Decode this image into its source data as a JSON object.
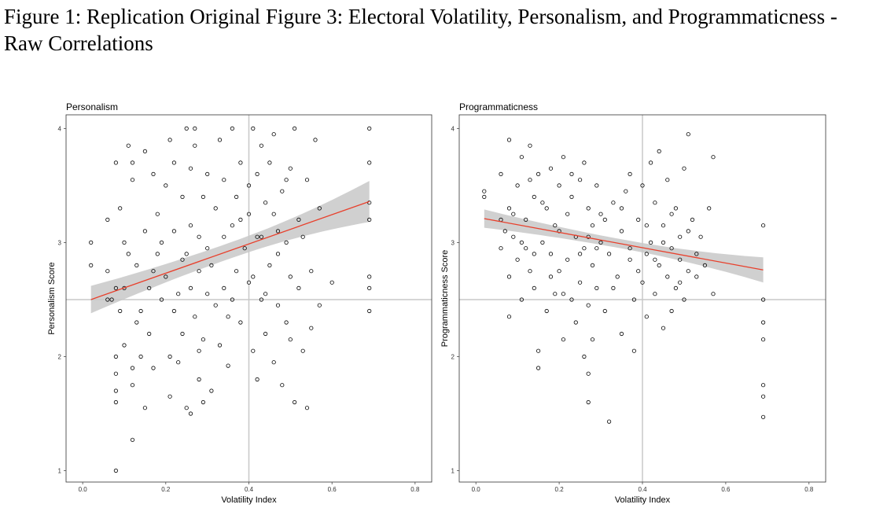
{
  "figure": {
    "caption": "Figure 1: Replication Original Figure 3: Electoral Volatility, Personalism, and Programmaticness - Raw Correlations"
  },
  "colors": {
    "fit_line": "#e8402c",
    "confidence_band": "#c8c8c8",
    "reference_line": "#c8c8c8",
    "points": "#000000",
    "panel_border": "#333333"
  },
  "chart_data": [
    {
      "type": "scatter",
      "title": "Personalism",
      "xlabel": "Volatility Index",
      "ylabel": "Personalism Score",
      "xlim": [
        -0.04,
        0.84
      ],
      "ylim": [
        0.9,
        4.12
      ],
      "xticks": [
        0.0,
        0.2,
        0.4,
        0.6,
        0.8
      ],
      "yticks": [
        1,
        2,
        3,
        4
      ],
      "reference_lines": {
        "x": 0.4,
        "y": 2.5
      },
      "fit": {
        "x": [
          0.02,
          0.69
        ],
        "y": [
          2.5,
          3.36
        ],
        "ci_halfwidth": [
          0.12,
          0.07,
          0.18
        ]
      },
      "grid": false,
      "points": [
        [
          0.02,
          3.0
        ],
        [
          0.02,
          2.8
        ],
        [
          0.06,
          3.2
        ],
        [
          0.06,
          2.75
        ],
        [
          0.06,
          2.5
        ],
        [
          0.07,
          2.5
        ],
        [
          0.08,
          2.6
        ],
        [
          0.08,
          2.0
        ],
        [
          0.08,
          1.7
        ],
        [
          0.08,
          1.85
        ],
        [
          0.08,
          1.6
        ],
        [
          0.09,
          2.4
        ],
        [
          0.1,
          2.6
        ],
        [
          0.1,
          2.1
        ],
        [
          0.12,
          1.9
        ],
        [
          0.12,
          1.75
        ],
        [
          0.12,
          1.27
        ],
        [
          0.08,
          1.0
        ],
        [
          0.08,
          3.7
        ],
        [
          0.09,
          3.3
        ],
        [
          0.1,
          3.0
        ],
        [
          0.11,
          2.9
        ],
        [
          0.11,
          3.85
        ],
        [
          0.12,
          3.55
        ],
        [
          0.12,
          3.7
        ],
        [
          0.13,
          2.8
        ],
        [
          0.14,
          2.4
        ],
        [
          0.14,
          2.0
        ],
        [
          0.15,
          3.1
        ],
        [
          0.15,
          3.8
        ],
        [
          0.16,
          2.6
        ],
        [
          0.16,
          2.2
        ],
        [
          0.17,
          1.9
        ],
        [
          0.17,
          3.6
        ],
        [
          0.18,
          2.9
        ],
        [
          0.18,
          3.25
        ],
        [
          0.19,
          2.5
        ],
        [
          0.2,
          3.5
        ],
        [
          0.2,
          2.7
        ],
        [
          0.21,
          1.65
        ],
        [
          0.21,
          3.9
        ],
        [
          0.21,
          2.0
        ],
        [
          0.22,
          2.4
        ],
        [
          0.22,
          3.1
        ],
        [
          0.22,
          3.7
        ],
        [
          0.23,
          2.55
        ],
        [
          0.24,
          2.2
        ],
        [
          0.24,
          3.4
        ],
        [
          0.25,
          1.55
        ],
        [
          0.25,
          4.0
        ],
        [
          0.25,
          2.9
        ],
        [
          0.26,
          3.15
        ],
        [
          0.26,
          2.6
        ],
        [
          0.26,
          1.5
        ],
        [
          0.27,
          3.85
        ],
        [
          0.27,
          2.35
        ],
        [
          0.27,
          4.0
        ],
        [
          0.28,
          3.05
        ],
        [
          0.28,
          2.75
        ],
        [
          0.28,
          1.8
        ],
        [
          0.29,
          3.4
        ],
        [
          0.29,
          2.15
        ],
        [
          0.3,
          2.55
        ],
        [
          0.3,
          3.6
        ],
        [
          0.31,
          1.7
        ],
        [
          0.31,
          2.8
        ],
        [
          0.32,
          3.3
        ],
        [
          0.33,
          2.1
        ],
        [
          0.33,
          3.9
        ],
        [
          0.34,
          2.6
        ],
        [
          0.34,
          3.55
        ],
        [
          0.35,
          2.35
        ],
        [
          0.35,
          1.92
        ],
        [
          0.36,
          3.15
        ],
        [
          0.36,
          4.0
        ],
        [
          0.37,
          2.75
        ],
        [
          0.37,
          3.4
        ],
        [
          0.38,
          2.3
        ],
        [
          0.38,
          3.7
        ],
        [
          0.39,
          2.95
        ],
        [
          0.4,
          3.25
        ],
        [
          0.4,
          2.65
        ],
        [
          0.41,
          4.0
        ],
        [
          0.41,
          2.05
        ],
        [
          0.42,
          3.6
        ],
        [
          0.42,
          3.05
        ],
        [
          0.42,
          1.8
        ],
        [
          0.43,
          2.5
        ],
        [
          0.43,
          3.85
        ],
        [
          0.44,
          3.35
        ],
        [
          0.44,
          2.2
        ],
        [
          0.45,
          2.8
        ],
        [
          0.45,
          3.7
        ],
        [
          0.46,
          3.95
        ],
        [
          0.46,
          1.95
        ],
        [
          0.47,
          3.1
        ],
        [
          0.47,
          2.45
        ],
        [
          0.48,
          3.45
        ],
        [
          0.48,
          1.75
        ],
        [
          0.49,
          3.0
        ],
        [
          0.49,
          2.3
        ],
        [
          0.5,
          3.65
        ],
        [
          0.5,
          2.7
        ],
        [
          0.51,
          1.6
        ],
        [
          0.51,
          4.0
        ],
        [
          0.52,
          3.2
        ],
        [
          0.52,
          2.6
        ],
        [
          0.53,
          2.05
        ],
        [
          0.54,
          3.55
        ],
        [
          0.54,
          1.55
        ],
        [
          0.55,
          2.25
        ],
        [
          0.56,
          3.9
        ],
        [
          0.57,
          3.3
        ],
        [
          0.57,
          2.45
        ],
        [
          0.6,
          2.65
        ],
        [
          0.69,
          4.0
        ],
        [
          0.69,
          3.7
        ],
        [
          0.69,
          3.35
        ],
        [
          0.69,
          3.2
        ],
        [
          0.69,
          2.7
        ],
        [
          0.69,
          2.6
        ],
        [
          0.69,
          2.4
        ],
        [
          0.13,
          2.3
        ],
        [
          0.15,
          1.55
        ],
        [
          0.17,
          2.75
        ],
        [
          0.19,
          3.0
        ],
        [
          0.23,
          1.95
        ],
        [
          0.24,
          2.85
        ],
        [
          0.26,
          3.65
        ],
        [
          0.28,
          2.05
        ],
        [
          0.29,
          1.6
        ],
        [
          0.3,
          2.95
        ],
        [
          0.32,
          2.45
        ],
        [
          0.34,
          3.05
        ],
        [
          0.36,
          2.5
        ],
        [
          0.38,
          3.2
        ],
        [
          0.4,
          3.5
        ],
        [
          0.41,
          2.7
        ],
        [
          0.43,
          3.05
        ],
        [
          0.44,
          2.55
        ],
        [
          0.46,
          3.25
        ],
        [
          0.47,
          2.9
        ],
        [
          0.49,
          3.55
        ],
        [
          0.5,
          2.15
        ],
        [
          0.53,
          3.05
        ],
        [
          0.55,
          2.75
        ]
      ]
    },
    {
      "type": "scatter",
      "title": "Programmaticness",
      "xlabel": "Volatility Index",
      "ylabel": "Programmaticness Score",
      "xlim": [
        -0.04,
        0.84
      ],
      "ylim": [
        0.9,
        4.12
      ],
      "xticks": [
        0.0,
        0.2,
        0.4,
        0.6,
        0.8
      ],
      "yticks": [
        1,
        2,
        3,
        4
      ],
      "reference_lines": {
        "x": 0.4,
        "y": 2.5
      },
      "fit": {
        "x": [
          0.02,
          0.69
        ],
        "y": [
          3.21,
          2.76
        ],
        "ci_halfwidth": [
          0.08,
          0.04,
          0.11
        ]
      },
      "grid": false,
      "points": [
        [
          0.02,
          3.45
        ],
        [
          0.02,
          3.4
        ],
        [
          0.06,
          3.6
        ],
        [
          0.06,
          3.2
        ],
        [
          0.06,
          2.95
        ],
        [
          0.07,
          3.1
        ],
        [
          0.08,
          3.9
        ],
        [
          0.08,
          3.3
        ],
        [
          0.08,
          2.7
        ],
        [
          0.08,
          2.35
        ],
        [
          0.09,
          3.05
        ],
        [
          0.1,
          3.5
        ],
        [
          0.1,
          2.85
        ],
        [
          0.11,
          3.75
        ],
        [
          0.11,
          2.5
        ],
        [
          0.12,
          3.2
        ],
        [
          0.12,
          2.95
        ],
        [
          0.13,
          3.85
        ],
        [
          0.13,
          2.75
        ],
        [
          0.14,
          3.4
        ],
        [
          0.14,
          2.6
        ],
        [
          0.15,
          2.05
        ],
        [
          0.15,
          1.9
        ],
        [
          0.15,
          3.6
        ],
        [
          0.16,
          3.0
        ],
        [
          0.17,
          3.3
        ],
        [
          0.17,
          2.4
        ],
        [
          0.18,
          3.65
        ],
        [
          0.18,
          2.9
        ],
        [
          0.19,
          3.15
        ],
        [
          0.19,
          2.55
        ],
        [
          0.2,
          3.5
        ],
        [
          0.2,
          2.75
        ],
        [
          0.21,
          2.15
        ],
        [
          0.21,
          3.75
        ],
        [
          0.22,
          3.25
        ],
        [
          0.22,
          2.85
        ],
        [
          0.23,
          3.4
        ],
        [
          0.23,
          2.5
        ],
        [
          0.24,
          3.05
        ],
        [
          0.24,
          2.3
        ],
        [
          0.25,
          3.55
        ],
        [
          0.25,
          2.65
        ],
        [
          0.26,
          3.7
        ],
        [
          0.26,
          2.95
        ],
        [
          0.26,
          2.0
        ],
        [
          0.27,
          3.3
        ],
        [
          0.27,
          2.45
        ],
        [
          0.27,
          1.85
        ],
        [
          0.27,
          1.6
        ],
        [
          0.28,
          3.15
        ],
        [
          0.28,
          2.8
        ],
        [
          0.28,
          2.15
        ],
        [
          0.29,
          3.5
        ],
        [
          0.29,
          2.6
        ],
        [
          0.3,
          3.0
        ],
        [
          0.3,
          3.25
        ],
        [
          0.31,
          2.4
        ],
        [
          0.32,
          1.43
        ],
        [
          0.32,
          2.9
        ],
        [
          0.33,
          3.35
        ],
        [
          0.34,
          2.7
        ],
        [
          0.35,
          3.1
        ],
        [
          0.35,
          2.2
        ],
        [
          0.36,
          3.45
        ],
        [
          0.37,
          2.85
        ],
        [
          0.37,
          3.6
        ],
        [
          0.38,
          2.5
        ],
        [
          0.38,
          2.05
        ],
        [
          0.39,
          3.2
        ],
        [
          0.4,
          2.65
        ],
        [
          0.4,
          3.5
        ],
        [
          0.41,
          2.9
        ],
        [
          0.41,
          2.35
        ],
        [
          0.42,
          3.7
        ],
        [
          0.42,
          3.0
        ],
        [
          0.43,
          2.55
        ],
        [
          0.43,
          3.35
        ],
        [
          0.44,
          2.8
        ],
        [
          0.44,
          3.8
        ],
        [
          0.45,
          2.25
        ],
        [
          0.45,
          3.15
        ],
        [
          0.46,
          2.7
        ],
        [
          0.46,
          3.55
        ],
        [
          0.47,
          2.95
        ],
        [
          0.47,
          2.4
        ],
        [
          0.48,
          3.3
        ],
        [
          0.48,
          2.6
        ],
        [
          0.49,
          3.05
        ],
        [
          0.49,
          2.85
        ],
        [
          0.5,
          3.65
        ],
        [
          0.5,
          2.5
        ],
        [
          0.51,
          3.95
        ],
        [
          0.51,
          2.75
        ],
        [
          0.52,
          3.2
        ],
        [
          0.53,
          2.9
        ],
        [
          0.54,
          3.05
        ],
        [
          0.55,
          2.8
        ],
        [
          0.56,
          3.3
        ],
        [
          0.57,
          3.75
        ],
        [
          0.57,
          2.55
        ],
        [
          0.69,
          3.15
        ],
        [
          0.69,
          2.5
        ],
        [
          0.69,
          2.3
        ],
        [
          0.69,
          2.15
        ],
        [
          0.69,
          1.75
        ],
        [
          0.69,
          1.65
        ],
        [
          0.69,
          1.47
        ],
        [
          0.09,
          3.25
        ],
        [
          0.11,
          3.0
        ],
        [
          0.13,
          3.55
        ],
        [
          0.14,
          2.9
        ],
        [
          0.16,
          3.35
        ],
        [
          0.18,
          2.7
        ],
        [
          0.2,
          3.1
        ],
        [
          0.21,
          2.55
        ],
        [
          0.23,
          3.6
        ],
        [
          0.25,
          2.9
        ],
        [
          0.27,
          3.05
        ],
        [
          0.29,
          2.95
        ],
        [
          0.31,
          3.2
        ],
        [
          0.33,
          2.6
        ],
        [
          0.35,
          3.3
        ],
        [
          0.37,
          2.95
        ],
        [
          0.39,
          2.75
        ],
        [
          0.41,
          3.15
        ],
        [
          0.43,
          2.85
        ],
        [
          0.45,
          3.0
        ],
        [
          0.47,
          3.25
        ],
        [
          0.49,
          2.65
        ],
        [
          0.51,
          3.1
        ],
        [
          0.53,
          2.7
        ]
      ]
    }
  ]
}
